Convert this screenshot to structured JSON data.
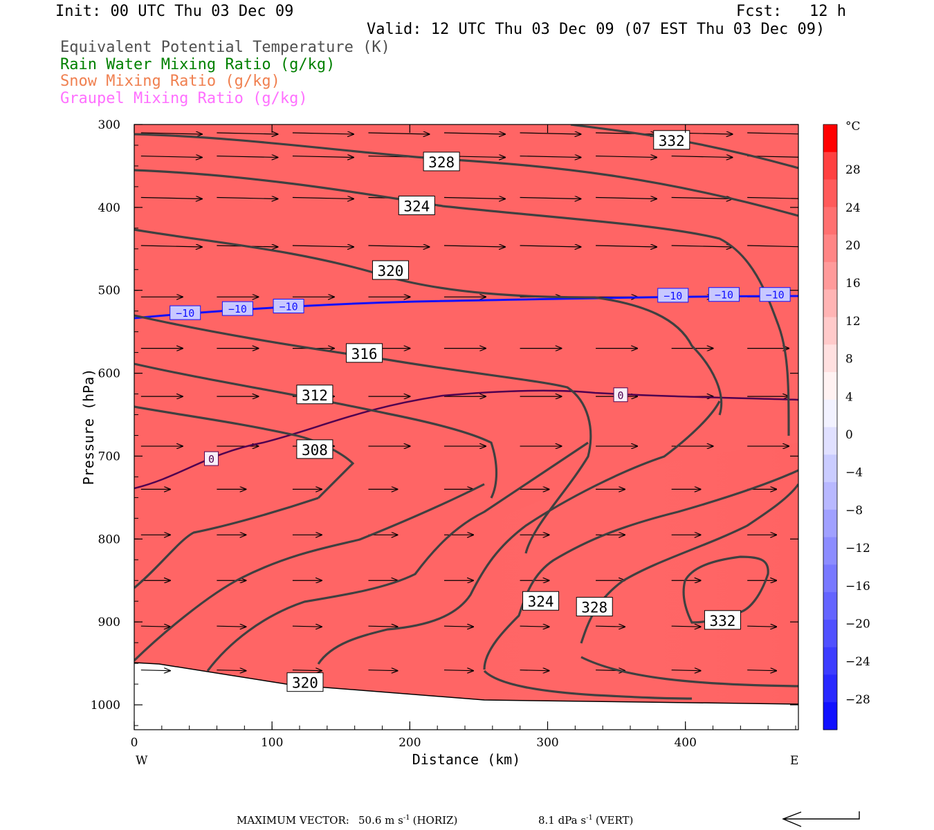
{
  "header": {
    "init": "Init: 00 UTC Thu 03 Dec 09",
    "fcst": "Fcst:   12 h",
    "valid": "Valid: 12 UTC Thu 03 Dec 09 (07 EST Thu 03 Dec 09)"
  },
  "legend": {
    "items": [
      {
        "label": "Equivalent Potential Temperature (K)",
        "color": "#505050"
      },
      {
        "label": "Rain Water Mixing Ratio (g/kg)",
        "color": "#008000"
      },
      {
        "label": "Snow Mixing Ratio (g/kg)",
        "color": "#f08050"
      },
      {
        "label": "Graupel Mixing Ratio (g/kg)",
        "color": "#ff70ff"
      }
    ]
  },
  "footer": {
    "max_vector_label": "MAXIMUM VECTOR:",
    "horiz_value": "50.6 m s",
    "horiz_exp": "-1",
    "horiz_tag": "(HORIZ)",
    "vert_value": "8.1 dPa s",
    "vert_exp": "-1",
    "vert_tag": "(VERT)"
  },
  "chart_data": {
    "type": "cross-section contour",
    "xlabel": "Distance (km)",
    "ylabel": "Pressure (hPa)",
    "x_ticks": [
      "0",
      "100",
      "200",
      "300",
      "400"
    ],
    "y_ticks": [
      "300",
      "400",
      "500",
      "600",
      "700",
      "800",
      "900",
      "1000"
    ],
    "xlim": [
      0,
      482
    ],
    "ylim": [
      300,
      1030
    ],
    "y_reversed": true,
    "end_labels": {
      "left": "W",
      "right": "E"
    },
    "colorbar": {
      "unit": "°C",
      "labels": [
        "28",
        "24",
        "20",
        "16",
        "12",
        "8",
        "4",
        "0",
        "−4",
        "−8",
        "−12",
        "−16",
        "−20",
        "−24",
        "−28"
      ],
      "colors": [
        "#ff0000",
        "#ff4040",
        "#ff5a5a",
        "#ff7070",
        "#ff8585",
        "#ff9a9a",
        "#ffb4b4",
        "#ffcaca",
        "#ffe0e0",
        "#fff2f2",
        "#f2f2ff",
        "#e0e0ff",
        "#caccff",
        "#b8b8ff",
        "#a0a0ff",
        "#8c8cff",
        "#7878ff",
        "#6464ff",
        "#5050ff",
        "#3c3cff",
        "#2828ff",
        "#1010ff"
      ]
    },
    "theta_e_contours": [
      {
        "value": 308,
        "label": "308"
      },
      {
        "value": 312,
        "label": "312"
      },
      {
        "value": 316,
        "label": "316"
      },
      {
        "value": 320,
        "label": "320"
      },
      {
        "value": 324,
        "label": "324"
      },
      {
        "value": 328,
        "label": "328"
      },
      {
        "value": 332,
        "label": "332"
      }
    ],
    "theta_e_labels": [
      {
        "text": "332",
        "x": 390,
        "p": 319
      },
      {
        "text": "328",
        "x": 223,
        "p": 345
      },
      {
        "text": "324",
        "x": 205,
        "p": 398
      },
      {
        "text": "320",
        "x": 186,
        "p": 476
      },
      {
        "text": "316",
        "x": 167,
        "p": 576
      },
      {
        "text": "312",
        "x": 131,
        "p": 626
      },
      {
        "text": "308",
        "x": 131,
        "p": 692
      },
      {
        "text": "324",
        "x": 295,
        "p": 875
      },
      {
        "text": "328",
        "x": 334,
        "p": 882
      },
      {
        "text": "332",
        "x": 427,
        "p": 898
      },
      {
        "text": "320",
        "x": 124,
        "p": 973
      }
    ],
    "isotherm_labels": [
      {
        "text": "−10",
        "x": 37,
        "p": 527
      },
      {
        "text": "−10",
        "x": 75,
        "p": 522
      },
      {
        "text": "−10",
        "x": 112,
        "p": 519
      },
      {
        "text": "−10",
        "x": 391,
        "p": 506
      },
      {
        "text": "−10",
        "x": 428,
        "p": 505
      },
      {
        "text": "−10",
        "x": 465,
        "p": 505
      },
      {
        "text": "0",
        "x": 56,
        "p": 703
      },
      {
        "text": "0",
        "x": 353,
        "p": 626
      }
    ]
  }
}
